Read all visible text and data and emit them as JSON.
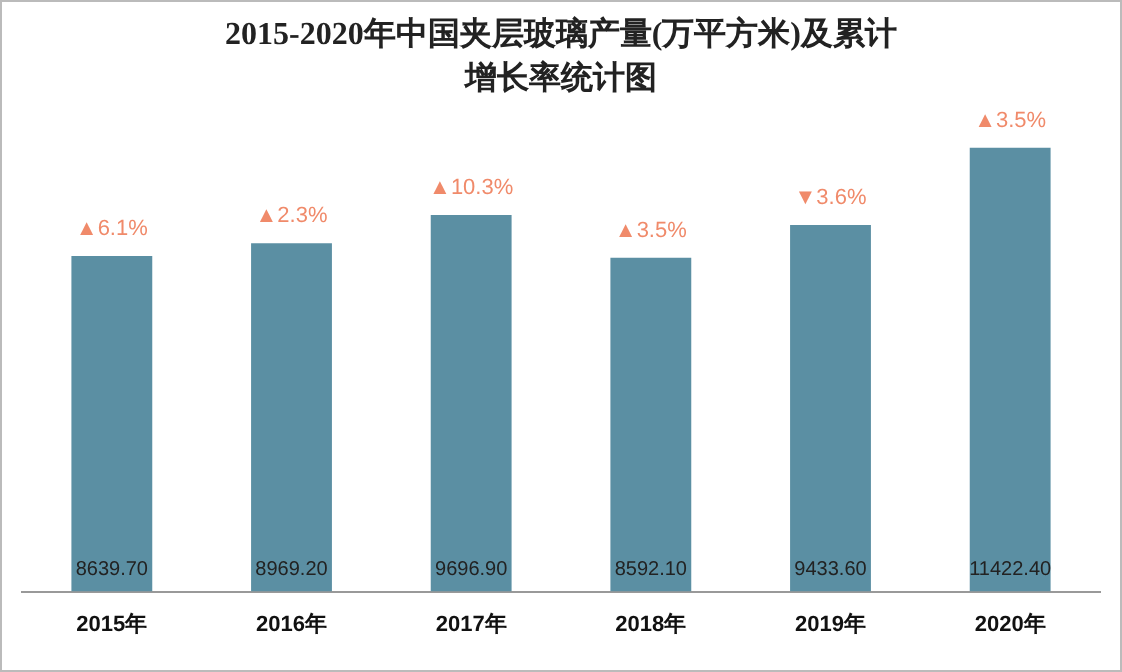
{
  "chart_data": {
    "type": "bar",
    "title": "2015-2020年中国夹层玻璃产量(万平方米)及累计增长率统计图",
    "categories": [
      "2015年",
      "2016年",
      "2017年",
      "2018年",
      "2019年",
      "2020年"
    ],
    "values": [
      8639.7,
      8969.2,
      9696.9,
      8592.1,
      9433.6,
      11422.4
    ],
    "color": "#5b8fa3",
    "data_labels": true,
    "grid": false,
    "legend": false,
    "value_labels": [
      "8639.70",
      "8969.20",
      "9696.90",
      "8592.10",
      "9433.60",
      "11422.40"
    ],
    "annotations": [
      {
        "text": "▲6.1%",
        "x": "2015年",
        "y": 8639.7
      },
      {
        "text": "▲2.3%",
        "x": "2016年",
        "y": 8969.2
      },
      {
        "text": "▲10.3%",
        "x": "2017年",
        "y": 9696.9
      },
      {
        "text": "▲3.5%",
        "x": "2018年",
        "y": 8592.1
      },
      {
        "text": "▼3.6%",
        "x": "2019年",
        "y": 9433.6
      },
      {
        "text": "▲3.5%",
        "x": "2020年",
        "y": 11422.4
      }
    ]
  }
}
